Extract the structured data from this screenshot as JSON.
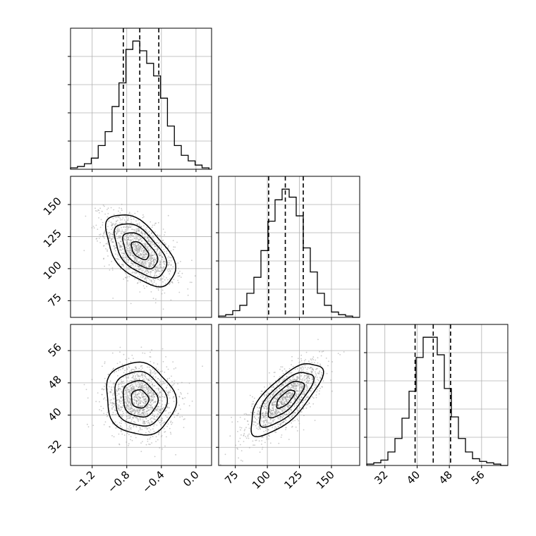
{
  "chart_data": {
    "type": "corner",
    "parameters": [
      {
        "ticks": [
          -1.2,
          -0.8,
          -0.4,
          0.0
        ],
        "tick_labels": [
          "−1.2",
          "−0.8",
          "−0.4",
          "0.0"
        ],
        "range": [
          -1.45,
          0.18
        ],
        "quantiles": [
          -0.84,
          -0.65,
          -0.43
        ],
        "hist": {
          "bin_width": 0.08,
          "bin_start": -1.45,
          "counts": [
            1,
            2,
            4,
            8,
            17,
            27,
            45,
            62,
            86,
            92,
            85,
            76,
            67,
            51,
            31,
            17,
            10,
            6,
            3,
            1
          ]
        }
      },
      {
        "ticks": [
          75,
          100,
          125,
          150
        ],
        "tick_labels": [
          "75",
          "100",
          "125",
          "150"
        ],
        "range": [
          62,
          172
        ],
        "quantiles": [
          101,
          114,
          128
        ],
        "hist": {
          "bin_width": 5.5,
          "bin_start": 62,
          "counts": [
            1,
            2,
            5,
            9,
            18,
            30,
            50,
            72,
            88,
            96,
            90,
            76,
            52,
            34,
            18,
            9,
            4,
            2,
            1,
            0
          ]
        }
      },
      {
        "ticks": [
          32,
          40,
          48,
          56
        ],
        "tick_labels": [
          "32",
          "40",
          "48",
          "56"
        ],
        "range": [
          27.5,
          62.5
        ],
        "quantiles": [
          39.5,
          44,
          48.3
        ],
        "hist": {
          "bin_width": 1.75,
          "bin_start": 27.5,
          "counts": [
            1,
            2,
            4,
            10,
            20,
            35,
            55,
            80,
            95,
            95,
            82,
            57,
            36,
            20,
            10,
            5,
            3,
            2,
            1,
            0
          ]
        }
      }
    ],
    "pairs": [
      {
        "x": 0,
        "y": 1,
        "mean": [
          -0.65,
          114
        ],
        "sd": [
          0.2,
          14
        ],
        "rho": -0.55
      },
      {
        "x": 0,
        "y": 2,
        "mean": [
          -0.65,
          44
        ],
        "sd": [
          0.2,
          4.5
        ],
        "rho": -0.1
      },
      {
        "x": 1,
        "y": 2,
        "mean": [
          114,
          44
        ],
        "sd": [
          14,
          4.5
        ],
        "rho": 0.72
      }
    ],
    "levels": [
      0.5,
      1.0,
      1.5,
      2.0
    ],
    "grid": true,
    "colors": {
      "line": "#000000",
      "points": "#9e9e9e",
      "grid": "#b0b0b0"
    }
  }
}
